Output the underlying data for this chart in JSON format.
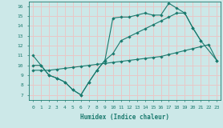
{
  "background_color": "#cce8e8",
  "grid_color": "#e8c8c8",
  "line_color": "#1a7a6e",
  "xlabel": "Humidex (Indice chaleur)",
  "xlim": [
    -0.5,
    23.5
  ],
  "ylim": [
    6.5,
    16.5
  ],
  "xticks": [
    0,
    1,
    2,
    3,
    4,
    5,
    6,
    7,
    8,
    9,
    10,
    11,
    12,
    13,
    14,
    15,
    16,
    17,
    18,
    19,
    20,
    21,
    22,
    23
  ],
  "yticks": [
    7,
    8,
    9,
    10,
    11,
    12,
    13,
    14,
    15,
    16
  ],
  "line1_x": [
    0,
    1,
    2,
    3,
    4,
    5,
    6,
    7,
    8,
    9,
    10,
    11,
    12,
    13,
    14,
    15,
    16,
    17,
    18,
    19,
    20,
    21,
    23
  ],
  "line1_y": [
    11.0,
    10.0,
    9.0,
    8.7,
    8.3,
    7.5,
    7.0,
    8.3,
    9.5,
    10.5,
    14.8,
    14.9,
    14.9,
    15.1,
    15.3,
    15.1,
    15.1,
    16.3,
    15.8,
    15.3,
    13.8,
    12.5,
    10.5
  ],
  "line2_x": [
    0,
    1,
    2,
    3,
    4,
    5,
    6,
    7,
    8,
    9,
    10,
    11,
    12,
    13,
    14,
    15,
    16,
    17,
    18,
    19,
    20,
    21,
    22,
    23
  ],
  "line2_y": [
    10.0,
    10.0,
    9.0,
    8.7,
    8.3,
    7.5,
    7.0,
    8.3,
    9.5,
    10.5,
    11.2,
    12.5,
    12.9,
    13.3,
    13.7,
    14.1,
    14.5,
    14.9,
    15.3,
    15.3,
    13.8,
    12.5,
    null,
    null
  ],
  "line3_x": [
    0,
    1,
    2,
    3,
    4,
    5,
    6,
    7,
    8,
    9,
    10,
    11,
    12,
    13,
    14,
    15,
    16,
    17,
    18,
    19,
    20,
    21,
    22,
    23
  ],
  "line3_y": [
    9.5,
    9.5,
    9.5,
    9.6,
    9.7,
    9.8,
    9.9,
    10.0,
    10.1,
    10.2,
    10.3,
    10.4,
    10.5,
    10.6,
    10.7,
    10.8,
    10.9,
    11.1,
    11.3,
    11.5,
    11.7,
    11.9,
    12.1,
    10.5
  ]
}
